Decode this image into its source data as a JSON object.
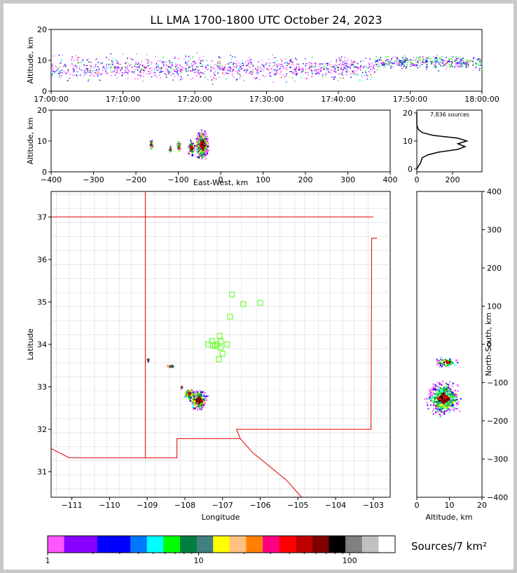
{
  "title": "LL LMA 1700-1800 UTC October 24, 2023",
  "colors": {
    "border": "#c8c8c8",
    "state_line": "#e00000",
    "county_line": "#b4b4b4",
    "station": "#6fff3a",
    "grid": "#e6e6e6"
  },
  "time_height": {
    "ylabel": "Altitude, km",
    "x_ticks": [
      "17:00:00",
      "17:10:00",
      "17:20:00",
      "17:30:00",
      "17:40:00",
      "17:50:00",
      "18:00:00"
    ],
    "y_ticks": [
      "0",
      "10",
      "20"
    ],
    "xlim_minutes": [
      0,
      60
    ],
    "ylim": [
      0,
      20
    ]
  },
  "ew_height": {
    "xlabel": "East-West, km",
    "ylabel": "Altitude, km",
    "x_ticks": [
      "−400",
      "−300",
      "−200",
      "−100",
      "0",
      "100",
      "200",
      "300",
      "400"
    ],
    "y_ticks": [
      "0",
      "10",
      "20"
    ],
    "xlim": [
      -400,
      400
    ],
    "ylim": [
      0,
      20
    ]
  },
  "alt_hist": {
    "annotation": "7,836 sources",
    "x_ticks": [
      "0",
      "200"
    ],
    "y_ticks": [
      "0",
      "10",
      "20"
    ],
    "profile": [
      [
        0,
        0
      ],
      [
        5,
        0.5
      ],
      [
        8,
        1
      ],
      [
        20,
        2
      ],
      [
        30,
        4
      ],
      [
        60,
        5
      ],
      [
        120,
        6
      ],
      [
        230,
        7
      ],
      [
        270,
        8
      ],
      [
        230,
        9
      ],
      [
        280,
        10
      ],
      [
        230,
        11
      ],
      [
        90,
        12
      ],
      [
        30,
        13
      ],
      [
        10,
        14
      ],
      [
        3,
        15
      ],
      [
        0,
        16
      ],
      [
        0,
        20
      ]
    ]
  },
  "map": {
    "xlabel": "Longitude",
    "ylabel": "Latitude",
    "x_ticks": [
      "−111",
      "−110",
      "−109",
      "−108",
      "−107",
      "−106",
      "−105",
      "−104",
      "−103"
    ],
    "y_ticks": [
      "31",
      "32",
      "33",
      "34",
      "35",
      "36",
      "37"
    ],
    "xlim": [
      -111.55,
      -102.55
    ],
    "ylim": [
      30.4,
      37.6
    ],
    "stations": [
      [
        -107.28,
        34.08
      ],
      [
        -107.25,
        33.98
      ],
      [
        -107.15,
        34.0
      ],
      [
        -107.08,
        34.2
      ],
      [
        -107.05,
        34.07
      ],
      [
        -107.05,
        33.92
      ],
      [
        -107.0,
        33.78
      ],
      [
        -106.88,
        34.0
      ],
      [
        -107.1,
        33.65
      ],
      [
        -106.8,
        34.65
      ],
      [
        -106.75,
        35.17
      ],
      [
        -106.45,
        34.95
      ],
      [
        -106.0,
        34.98
      ],
      [
        -107.38,
        34.0
      ],
      [
        -107.2,
        33.96
      ]
    ],
    "clusters": [
      [
        -107.65,
        32.7,
        0.35,
        0.35
      ],
      [
        -107.9,
        32.85,
        0.25,
        0.18
      ],
      [
        -108.4,
        33.5,
        0.15,
        0.05
      ],
      [
        -108.1,
        33.0,
        0.05,
        0.05
      ],
      [
        -109.0,
        33.65,
        0.05,
        0.05
      ]
    ]
  },
  "ns_alt": {
    "xlabel": "Altitude, km",
    "ylabel": "North-South, km",
    "x_ticks": [
      "0",
      "10",
      "20"
    ],
    "y_ticks": [
      "400",
      "300",
      "200",
      "100",
      "0",
      "−100",
      "−200",
      "−300",
      "−400"
    ],
    "xlim": [
      0,
      20
    ],
    "ylim": [
      -400,
      400
    ]
  },
  "colorbar": {
    "label": "Sources/7 km²",
    "tick_labels": [
      "1",
      "10",
      "100"
    ],
    "colors": [
      "#ff55ff",
      "#8800ff",
      "#8800ff",
      "#0000ff",
      "#0000ff",
      "#0077ff",
      "#00ffff",
      "#00ff00",
      "#008040",
      "#408080",
      "#ffff00",
      "#ffc080",
      "#ff8000",
      "#ff0080",
      "#ff0000",
      "#c00000",
      "#800000",
      "#000000",
      "#808080",
      "#c0c0c0",
      "#ffffff"
    ]
  }
}
